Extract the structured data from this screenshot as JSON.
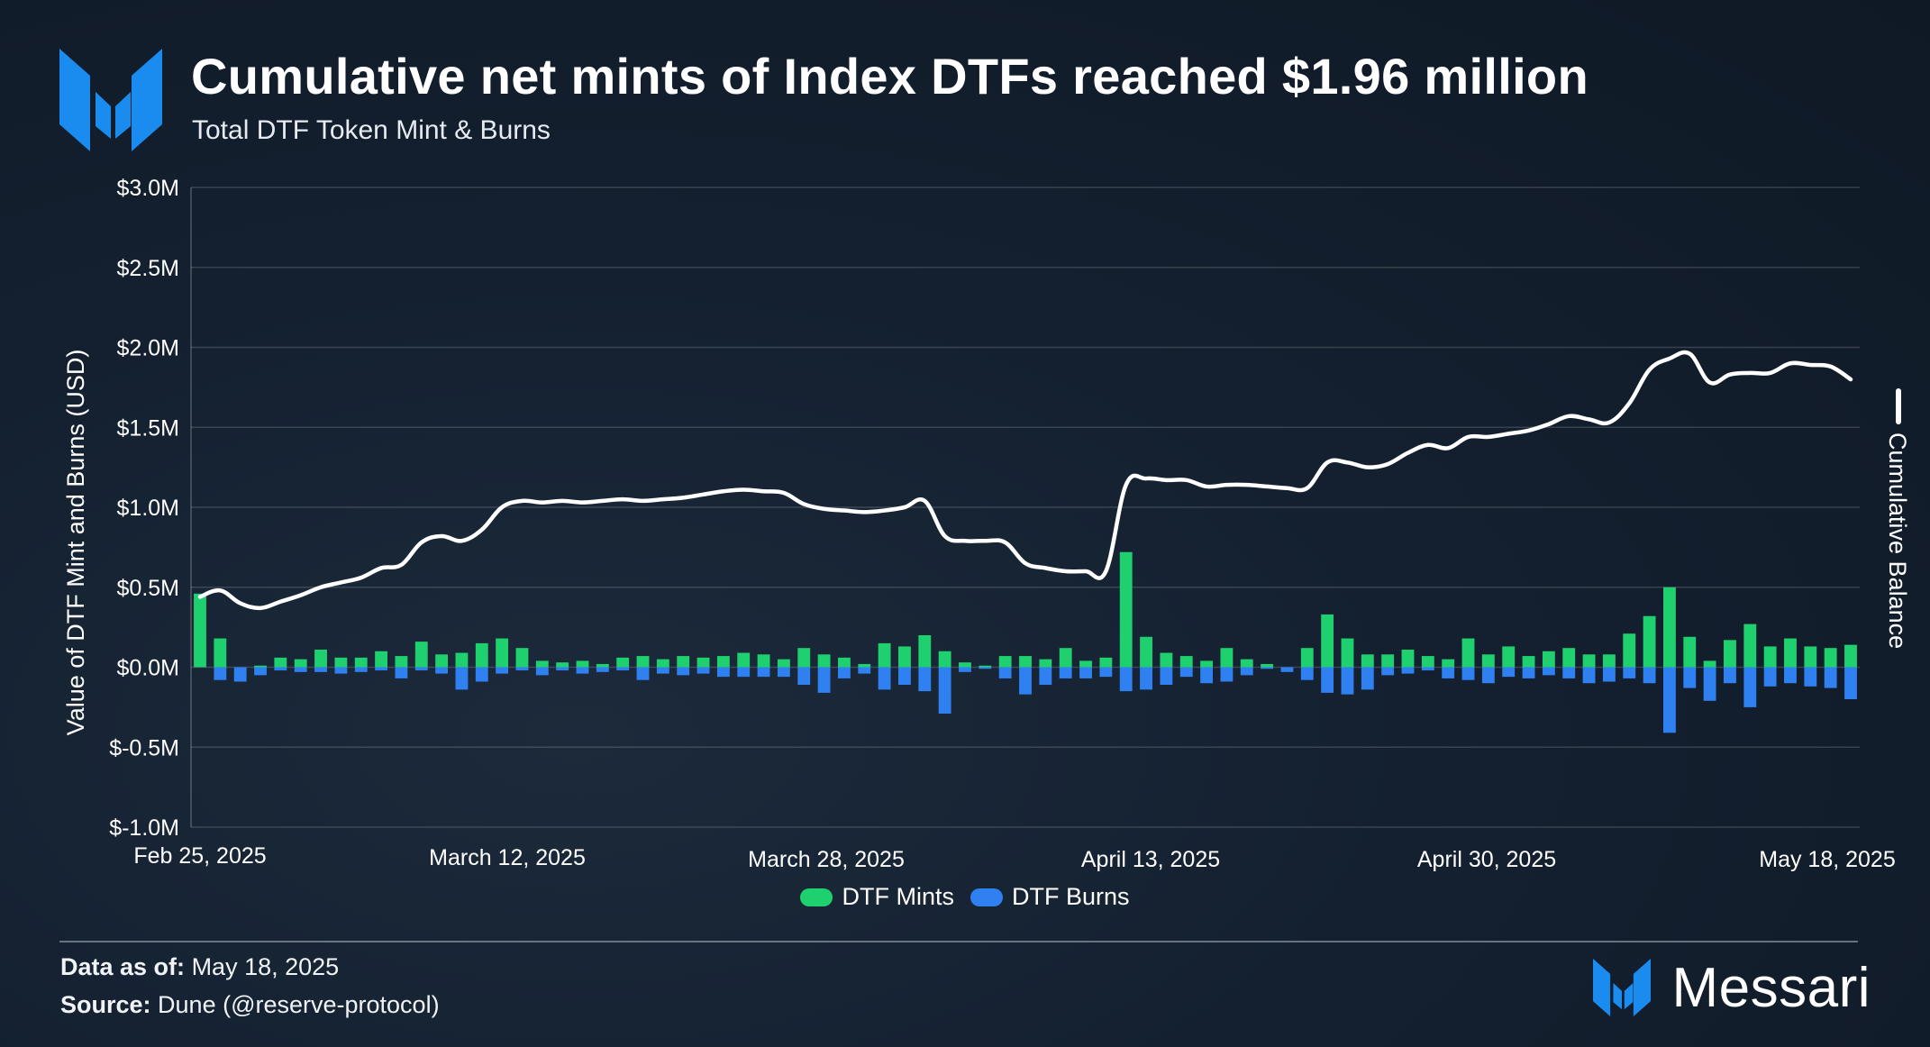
{
  "header": {
    "title": "Cumulative net mints of Index DTFs reached $1.96 million",
    "subtitle": "Total DTF Token Mint & Burns"
  },
  "footer": {
    "data_as_of_label": "Data as of:",
    "data_as_of_value": "May 18, 2025",
    "source_label": "Source:",
    "source_value": "Dune (@reserve-protocol)",
    "brand": "Messari"
  },
  "colors": {
    "mints": "#1fd06f",
    "burns": "#2f80f0",
    "line": "#ffffff",
    "brand_blue": "#1a8cf0"
  },
  "icons": [
    "messari-logo-icon"
  ],
  "chart_data": {
    "type": "bar",
    "ylabel": "Value of DTF Mint and Burns (USD)",
    "y2label": "Cumulative Balance",
    "ylim": [
      -1.0,
      3.0
    ],
    "yunit": "$M",
    "yticks": [
      "$3.0M",
      "$2.5M",
      "$2.0M",
      "$1.5M",
      "$1.0M",
      "$0.5M",
      "$0.0M",
      "$-0.5M",
      "$-1.0M"
    ],
    "ytick_values": [
      3.0,
      2.5,
      2.0,
      1.5,
      1.0,
      0.5,
      0.0,
      -0.5,
      -1.0
    ],
    "xticks": [
      "Feb 25, 2025",
      "March 12, 2025",
      "March 28, 2025",
      "April 13, 2025",
      "April 30, 2025",
      "May 18, 2025"
    ],
    "xtick_index": [
      0,
      15,
      31,
      47,
      64,
      82
    ],
    "x_start": "Feb 25, 2025",
    "x_end": "May 18, 2025",
    "grid": true,
    "legend_position": "bottom-center",
    "series": [
      {
        "name": "DTF Mints",
        "kind": "bar",
        "values": [
          0.46,
          0.18,
          0.0,
          0.01,
          0.06,
          0.05,
          0.11,
          0.06,
          0.06,
          0.1,
          0.07,
          0.16,
          0.08,
          0.09,
          0.15,
          0.18,
          0.12,
          0.04,
          0.03,
          0.04,
          0.02,
          0.06,
          0.07,
          0.05,
          0.07,
          0.06,
          0.07,
          0.09,
          0.08,
          0.05,
          0.12,
          0.08,
          0.06,
          0.02,
          0.15,
          0.13,
          0.2,
          0.1,
          0.03,
          0.01,
          0.07,
          0.07,
          0.05,
          0.12,
          0.04,
          0.06,
          0.72,
          0.19,
          0.09,
          0.07,
          0.04,
          0.12,
          0.05,
          0.02,
          0.0,
          0.12,
          0.33,
          0.18,
          0.08,
          0.08,
          0.11,
          0.07,
          0.05,
          0.18,
          0.08,
          0.13,
          0.07,
          0.1,
          0.12,
          0.08,
          0.08,
          0.21,
          0.32,
          0.5,
          0.19,
          0.04,
          0.17,
          0.27,
          0.13,
          0.18,
          0.13,
          0.12,
          0.14
        ]
      },
      {
        "name": "DTF Burns",
        "kind": "bar",
        "values": [
          0.0,
          -0.08,
          -0.09,
          -0.05,
          -0.02,
          -0.03,
          -0.03,
          -0.04,
          -0.03,
          -0.02,
          -0.07,
          -0.02,
          -0.04,
          -0.14,
          -0.09,
          -0.04,
          -0.02,
          -0.05,
          -0.02,
          -0.04,
          -0.03,
          -0.02,
          -0.08,
          -0.04,
          -0.05,
          -0.04,
          -0.06,
          -0.06,
          -0.06,
          -0.06,
          -0.11,
          -0.16,
          -0.07,
          -0.04,
          -0.14,
          -0.11,
          -0.15,
          -0.29,
          -0.03,
          -0.01,
          -0.07,
          -0.17,
          -0.11,
          -0.07,
          -0.07,
          -0.06,
          -0.15,
          -0.14,
          -0.11,
          -0.06,
          -0.1,
          -0.09,
          -0.05,
          -0.01,
          -0.03,
          -0.08,
          -0.16,
          -0.17,
          -0.14,
          -0.05,
          -0.04,
          -0.02,
          -0.07,
          -0.08,
          -0.1,
          -0.06,
          -0.07,
          -0.05,
          -0.07,
          -0.1,
          -0.09,
          -0.07,
          -0.1,
          -0.41,
          -0.13,
          -0.21,
          -0.1,
          -0.25,
          -0.12,
          -0.1,
          -0.12,
          -0.13,
          -0.2
        ]
      },
      {
        "name": "Cumulative Balance",
        "kind": "line",
        "values": [
          0.44,
          0.48,
          0.4,
          0.37,
          0.41,
          0.45,
          0.5,
          0.53,
          0.56,
          0.62,
          0.64,
          0.78,
          0.82,
          0.79,
          0.86,
          1.0,
          1.04,
          1.03,
          1.04,
          1.03,
          1.04,
          1.05,
          1.04,
          1.05,
          1.06,
          1.08,
          1.1,
          1.11,
          1.1,
          1.09,
          1.02,
          0.99,
          0.98,
          0.97,
          0.98,
          1.0,
          1.04,
          0.82,
          0.79,
          0.79,
          0.78,
          0.65,
          0.62,
          0.6,
          0.6,
          0.6,
          1.14,
          1.18,
          1.17,
          1.17,
          1.13,
          1.14,
          1.14,
          1.13,
          1.12,
          1.12,
          1.28,
          1.28,
          1.25,
          1.27,
          1.34,
          1.39,
          1.37,
          1.44,
          1.44,
          1.46,
          1.48,
          1.52,
          1.57,
          1.55,
          1.53,
          1.65,
          1.86,
          1.93,
          1.96,
          1.78,
          1.83,
          1.84,
          1.84,
          1.9,
          1.89,
          1.88,
          1.8
        ]
      }
    ]
  }
}
